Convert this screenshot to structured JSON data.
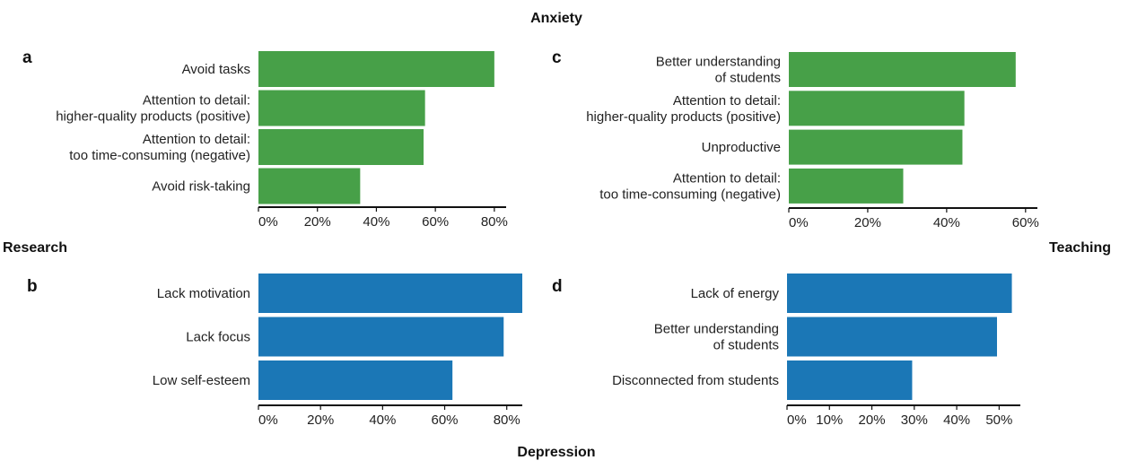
{
  "figure": {
    "top_title": "Anxiety",
    "bottom_title": "Depression",
    "left_label": "Research",
    "right_label": "Teaching"
  },
  "colors": {
    "anxiety": "#47a048",
    "depression": "#1b77b6",
    "axis": "#111111"
  },
  "chart_data": [
    {
      "panel": "a",
      "type": "bar",
      "orientation": "horizontal",
      "group": "Anxiety",
      "context": "Research",
      "categories": [
        "Avoid tasks",
        "Attention to detail:\nhigher-quality products (positive)",
        "Attention to detail:\ntoo time-consuming (negative)",
        "Avoid risk-taking"
      ],
      "values": [
        80,
        56.5,
        56,
        34.5
      ],
      "xlim": [
        0,
        84
      ],
      "ticks": [
        0,
        20,
        40,
        60,
        80
      ],
      "tick_labels": [
        "0%",
        "20%",
        "40%",
        "60%",
        "80%"
      ]
    },
    {
      "panel": "b",
      "type": "bar",
      "orientation": "horizontal",
      "group": "Depression",
      "context": "Research",
      "categories": [
        "Lack motivation",
        "Lack focus",
        "Low self-esteem"
      ],
      "values": [
        85,
        79,
        62.5
      ],
      "xlim": [
        0,
        85
      ],
      "ticks": [
        0,
        20,
        40,
        60,
        80
      ],
      "tick_labels": [
        "0%",
        "20%",
        "40%",
        "60%",
        "80%"
      ]
    },
    {
      "panel": "c",
      "type": "bar",
      "orientation": "horizontal",
      "group": "Anxiety",
      "context": "Teaching",
      "categories": [
        "Better understanding\nof students",
        "Attention to detail:\nhigher-quality products (positive)",
        "Unproductive",
        "Attention to detail:\ntoo time-consuming (negative)"
      ],
      "values": [
        57.5,
        44.5,
        44,
        29
      ],
      "xlim": [
        0,
        63
      ],
      "ticks": [
        0,
        20,
        40,
        60
      ],
      "tick_labels": [
        "0%",
        "20%",
        "40%",
        "60%"
      ]
    },
    {
      "panel": "d",
      "type": "bar",
      "orientation": "horizontal",
      "group": "Depression",
      "context": "Teaching",
      "categories": [
        "Lack of energy",
        "Better understanding\nof students",
        "Disconnected from students"
      ],
      "values": [
        53,
        49.5,
        29.5
      ],
      "xlim": [
        0,
        55
      ],
      "ticks": [
        0,
        10,
        20,
        30,
        40,
        50
      ],
      "tick_labels": [
        "0%",
        "10%",
        "20%",
        "30%",
        "40%",
        "50%"
      ]
    }
  ]
}
